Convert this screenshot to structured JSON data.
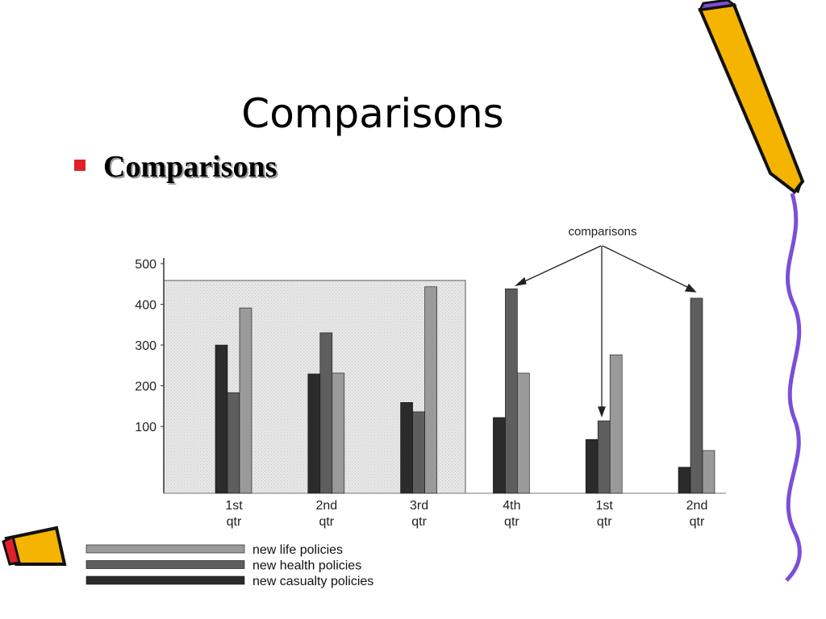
{
  "slide_title": "Comparisons",
  "bullet": "Comparisons",
  "chart_data": {
    "type": "bar",
    "categories": [
      "1st qtr",
      "2nd qtr",
      "3rd qtr",
      "4th qtr",
      "1st qtr",
      "2nd qtr"
    ],
    "series": [
      {
        "name": "new casualty policies",
        "color": "#2b2b2b",
        "values": [
          300,
          229,
          159,
          122,
          68,
          0
        ]
      },
      {
        "name": "new health policies",
        "color": "#5e5e5e",
        "values": [
          183,
          330,
          136,
          438,
          114,
          415
        ]
      },
      {
        "name": "new life policies",
        "color": "#9a9a9a",
        "values": [
          391,
          231,
          443,
          231,
          276,
          41
        ]
      }
    ],
    "legend_order": [
      2,
      1,
      0
    ],
    "annotation": "comparisons",
    "ylim": [
      -64,
      500
    ],
    "yticks": [
      100,
      200,
      300,
      400,
      500
    ]
  }
}
